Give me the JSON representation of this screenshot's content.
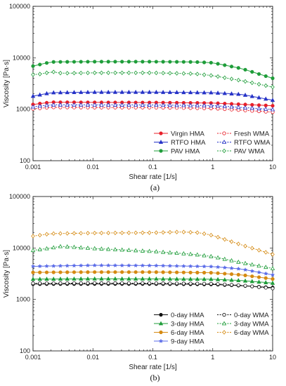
{
  "chart_data": [
    {
      "type": "line",
      "panel_label": "(a)",
      "xlabel": "Shear rate [1/s]",
      "ylabel": "Viscosity [Pa·s]",
      "xscale": "log",
      "yscale": "log",
      "xlim": [
        0.001,
        10
      ],
      "ylim": [
        100,
        100000
      ],
      "x_ticks": [
        "0.001",
        "0.01",
        "0.1",
        "1",
        "10"
      ],
      "y_ticks": [
        "100",
        "1000",
        "10000",
        "100000"
      ],
      "grid": false,
      "legend_position": "bottom-right",
      "series": [
        {
          "name": "Virgin HMA",
          "color": "#e8202a",
          "marker": "circle",
          "filled": true,
          "dash": false,
          "anchors": [
            [
              0.001,
              1240
            ],
            [
              0.002,
              1370
            ],
            [
              0.01,
              1360
            ],
            [
              0.1,
              1350
            ],
            [
              1,
              1320
            ],
            [
              10,
              1170
            ]
          ]
        },
        {
          "name": "Fresh WMA",
          "color": "#e8202a",
          "marker": "circle",
          "filled": false,
          "dash": true,
          "anchors": [
            [
              0.001,
              1020
            ],
            [
              0.002,
              1090
            ],
            [
              0.01,
              1080
            ],
            [
              0.1,
              1080
            ],
            [
              1,
              1040
            ],
            [
              10,
              880
            ]
          ]
        },
        {
          "name": "RTFO HMA",
          "color": "#2633c7",
          "marker": "triangle",
          "filled": true,
          "dash": false,
          "anchors": [
            [
              0.001,
              1800
            ],
            [
              0.002,
              2100
            ],
            [
              0.01,
              2150
            ],
            [
              0.1,
              2150
            ],
            [
              1,
              2100
            ],
            [
              3,
              1950
            ],
            [
              10,
              1500
            ]
          ]
        },
        {
          "name": "RTFO WMA",
          "color": "#2633c7",
          "marker": "triangle",
          "filled": false,
          "dash": true,
          "anchors": [
            [
              0.001,
              1120
            ],
            [
              0.002,
              1220
            ],
            [
              0.01,
              1220
            ],
            [
              0.1,
              1210
            ],
            [
              1,
              1180
            ],
            [
              10,
              990
            ]
          ]
        },
        {
          "name": "PAV HMA",
          "color": "#1f9d3a",
          "marker": "circle",
          "filled": true,
          "dash": false,
          "anchors": [
            [
              0.001,
              6900
            ],
            [
              0.002,
              8300
            ],
            [
              0.01,
              8400
            ],
            [
              0.1,
              8400
            ],
            [
              0.5,
              8300
            ],
            [
              1,
              8000
            ],
            [
              3,
              6200
            ],
            [
              10,
              4000
            ]
          ]
        },
        {
          "name": "PAV WMA",
          "color": "#1f9d3a",
          "marker": "diamond",
          "filled": false,
          "dash": true,
          "anchors": [
            [
              0.001,
              4700
            ],
            [
              0.0015,
              4900
            ],
            [
              0.002,
              5400
            ],
            [
              0.003,
              5000
            ],
            [
              0.01,
              5100
            ],
            [
              0.1,
              5100
            ],
            [
              0.5,
              4900
            ],
            [
              1,
              4500
            ],
            [
              3,
              3600
            ],
            [
              10,
              2700
            ]
          ]
        }
      ],
      "legend_order": [
        "Virgin HMA",
        "Fresh WMA",
        "RTFO HMA",
        "RTFO WMA",
        "PAV HMA",
        "PAV WMA"
      ]
    },
    {
      "type": "line",
      "panel_label": "(b)",
      "xlabel": "Shear rate [1/s]",
      "ylabel": "Viscosity [Pa·s]",
      "xscale": "log",
      "yscale": "log",
      "xlim": [
        0.001,
        10
      ],
      "ylim": [
        100,
        100000
      ],
      "x_ticks": [
        "0.001",
        "0.01",
        "0.1",
        "1",
        "10"
      ],
      "y_ticks": [
        "100",
        "1000",
        "10000",
        "100000"
      ],
      "grid": false,
      "legend_position": "bottom-right",
      "series": [
        {
          "name": "0-day HMA",
          "color": "#111111",
          "marker": "circle",
          "filled": true,
          "dash": false,
          "anchors": [
            [
              0.001,
              1990
            ],
            [
              0.01,
              2000
            ],
            [
              0.1,
              2000
            ],
            [
              1,
              1960
            ],
            [
              3,
              1850
            ],
            [
              10,
              1700
            ]
          ]
        },
        {
          "name": "0-day WMA",
          "color": "#111111",
          "marker": "circle",
          "filled": false,
          "dash": true,
          "anchors": [
            [
              0.001,
              2060
            ],
            [
              0.01,
              2080
            ],
            [
              0.1,
              2070
            ],
            [
              1,
              2020
            ],
            [
              3,
              1880
            ],
            [
              10,
              1640
            ]
          ]
        },
        {
          "name": "3-day HMA",
          "color": "#1f9d3a",
          "marker": "triangle",
          "filled": true,
          "dash": false,
          "anchors": [
            [
              0.001,
              2480
            ],
            [
              0.01,
              2520
            ],
            [
              0.1,
              2510
            ],
            [
              1,
              2470
            ],
            [
              3,
              2330
            ],
            [
              10,
              2080
            ]
          ]
        },
        {
          "name": "3-day WMA",
          "color": "#1f9d3a",
          "marker": "triangle",
          "filled": false,
          "dash": true,
          "anchors": [
            [
              0.001,
              9000
            ],
            [
              0.002,
              10000
            ],
            [
              0.003,
              10800
            ],
            [
              0.01,
              9800
            ],
            [
              0.1,
              8600
            ],
            [
              0.5,
              7500
            ],
            [
              1,
              6800
            ],
            [
              3,
              5200
            ],
            [
              10,
              4000
            ]
          ]
        },
        {
          "name": "6-day HMA",
          "color": "#d58a12",
          "marker": "circle",
          "filled": true,
          "dash": false,
          "anchors": [
            [
              0.001,
              3350
            ],
            [
              0.01,
              3400
            ],
            [
              0.1,
              3400
            ],
            [
              1,
              3300
            ],
            [
              3,
              3000
            ],
            [
              10,
              2500
            ]
          ]
        },
        {
          "name": "6-day WMA",
          "color": "#d58a12",
          "marker": "diamond",
          "filled": false,
          "dash": true,
          "anchors": [
            [
              0.001,
              17000
            ],
            [
              0.002,
              19000
            ],
            [
              0.01,
              19500
            ],
            [
              0.1,
              19800
            ],
            [
              0.3,
              20500
            ],
            [
              0.6,
              19800
            ],
            [
              1,
              17500
            ],
            [
              3,
              11500
            ],
            [
              10,
              7500
            ]
          ]
        },
        {
          "name": "9-day HMA",
          "color": "#5a6be8",
          "marker": "star",
          "filled": false,
          "dash": false,
          "anchors": [
            [
              0.001,
              4400
            ],
            [
              0.01,
              4600
            ],
            [
              0.1,
              4550
            ],
            [
              1,
              4350
            ],
            [
              3,
              3900
            ],
            [
              10,
              3000
            ]
          ]
        }
      ],
      "legend_order": [
        "0-day HMA",
        "0-day WMA",
        "3-day HMA",
        "3-day WMA",
        "6-day HMA",
        "6-day WMA",
        "9-day HMA"
      ]
    }
  ]
}
